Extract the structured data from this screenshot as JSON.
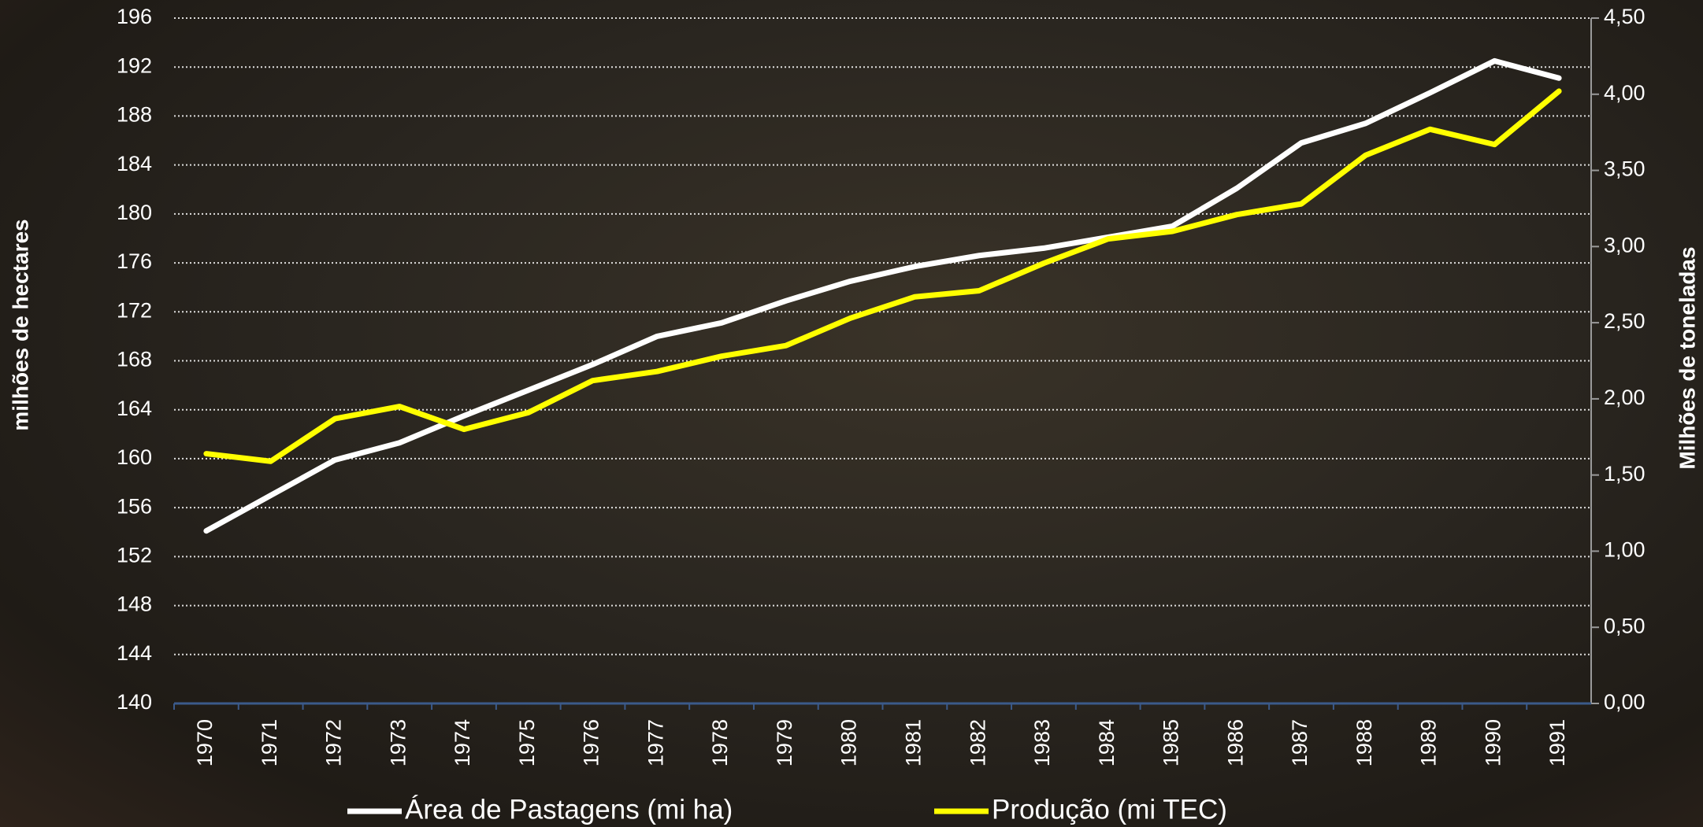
{
  "chart_data": {
    "type": "line",
    "categories": [
      "1970",
      "1971",
      "1972",
      "1973",
      "1974",
      "1975",
      "1976",
      "1977",
      "1978",
      "1979",
      "1980",
      "1981",
      "1982",
      "1983",
      "1984",
      "1985",
      "1986",
      "1987",
      "1988",
      "1989",
      "1990",
      "1991"
    ],
    "series": [
      {
        "name": "Área de Pastagens (mi ha)",
        "color": "#ffffff",
        "axis": "y",
        "values": [
          154.1,
          157.0,
          159.9,
          161.3,
          163.5,
          165.6,
          167.7,
          170.0,
          171.1,
          172.9,
          174.5,
          175.7,
          176.6,
          177.2,
          178.1,
          179.0,
          182.1,
          185.8,
          187.4,
          189.9,
          192.5,
          191.1
        ]
      },
      {
        "name": "Produção (mi TEC)",
        "color": "#ffff00",
        "axis": "y2",
        "values": [
          1.64,
          1.59,
          1.87,
          1.95,
          1.8,
          1.91,
          2.12,
          2.18,
          2.28,
          2.35,
          2.53,
          2.67,
          2.71,
          2.89,
          3.05,
          3.1,
          3.21,
          3.28,
          3.6,
          3.77,
          3.67,
          4.02
        ]
      }
    ],
    "y_label": "milhões de hectares",
    "y2_label": "Milhões de toneladas",
    "ylim": [
      140,
      196
    ],
    "yticks": [
      140,
      144,
      148,
      152,
      156,
      160,
      164,
      168,
      172,
      176,
      180,
      184,
      188,
      192,
      196
    ],
    "y2lim": [
      0,
      4.5
    ],
    "y2ticks": [
      {
        "value": 0,
        "label": "0,00"
      },
      {
        "value": 0.5,
        "label": "0,50"
      },
      {
        "value": 1,
        "label": "1,00"
      },
      {
        "value": 1.5,
        "label": "1,50"
      },
      {
        "value": 2,
        "label": "2,00"
      },
      {
        "value": 2.5,
        "label": "2,50"
      },
      {
        "value": 3,
        "label": "3,00"
      },
      {
        "value": 3.5,
        "label": "3,50"
      },
      {
        "value": 4,
        "label": "4,00"
      },
      {
        "value": 4.5,
        "label": "4,50"
      }
    ],
    "grid": true,
    "legend": "bottom"
  }
}
